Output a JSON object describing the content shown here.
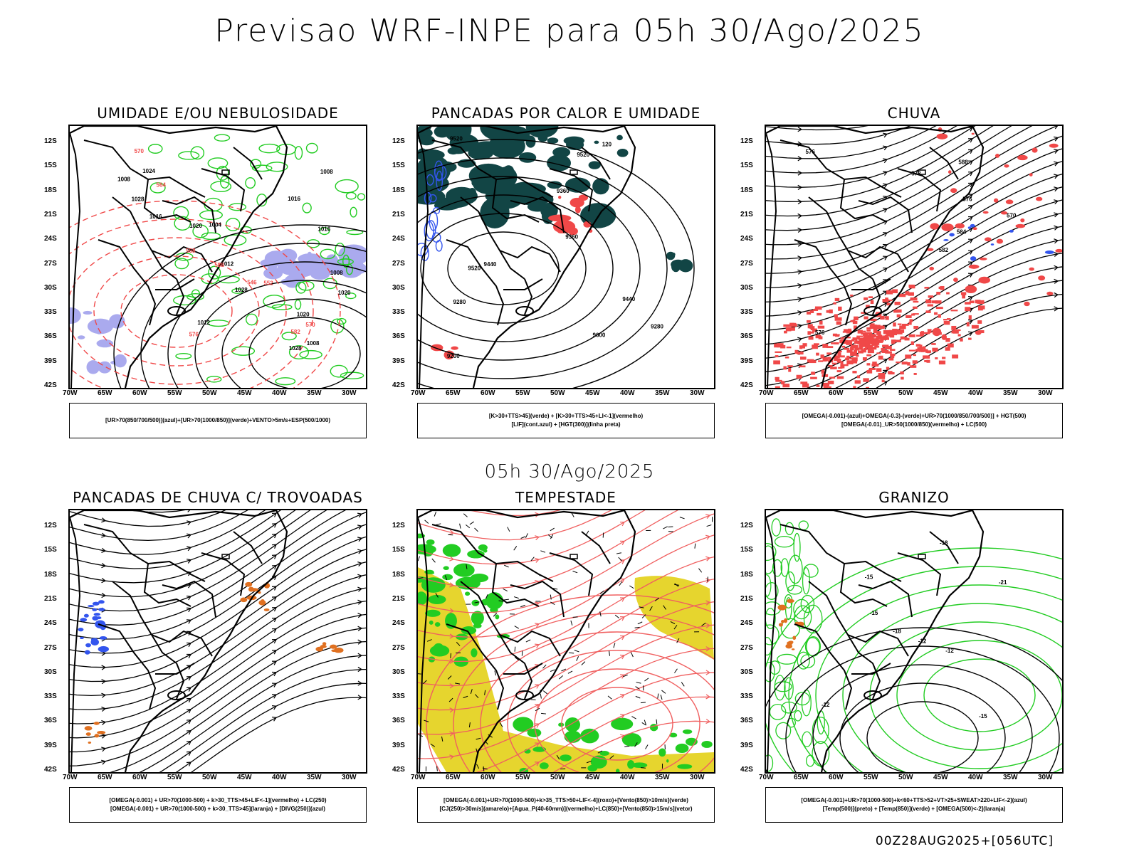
{
  "header": {
    "title": "Previsao WRF-INPE  para 05h 30/Ago/2025",
    "subtitle": "05h 30/Ago/2025",
    "footer": "00Z28AUG2025+[056UTC]"
  },
  "axes": {
    "lat_labels": [
      "12S",
      "15S",
      "18S",
      "21S",
      "24S",
      "27S",
      "30S",
      "33S",
      "36S",
      "39S",
      "42S"
    ],
    "lon_labels": [
      "70W",
      "65W",
      "60W",
      "55W",
      "50W",
      "45W",
      "40W",
      "35W",
      "30W"
    ]
  },
  "panels": [
    {
      "title": "UMIDADE E/OU NEBULOSIDADE",
      "legend": [
        "[UR>70(850/700/500)](azul)+[UR>70(1000/850)](verde)+VENTO>5m/s+ESP(500/1000)"
      ],
      "contour_labels": [
        "1008",
        "1008",
        "1008",
        "1012",
        "1016",
        "1016",
        "1020",
        "1020",
        "1024",
        "1028",
        "1028",
        "1004",
        "1008",
        "1012",
        "1016",
        "1020",
        "1028",
        "576",
        "570",
        "564",
        "558",
        "552",
        "546",
        "582",
        "588",
        "570"
      ]
    },
    {
      "title": "PANCADAS POR CALOR E UMIDADE",
      "legend": [
        "[K>30+TTS>45](verde) + [K>30+TTS>45+LI<-1](vermelho)",
        "[LIF](cont.azul) + [HGT(300)](linha preta)"
      ],
      "contour_labels": [
        "9600",
        "9520",
        "9520",
        "9520",
        "9440",
        "9440",
        "9360",
        "9360",
        "9280",
        "9200",
        "9280",
        "120"
      ]
    },
    {
      "title": "CHUVA",
      "legend": [
        "[OMEGA(-0.001)-(azul)+OMEGA(-0.3)-(verde)+UR>70(1000/850/700/500)] + HGT(500)",
        "[OMEGA(-0.01)_UR>50(1000/850)(vermelho) + LC(500)"
      ],
      "contour_labels": [
        "588",
        "582",
        "576",
        "576",
        "576",
        "573",
        "570",
        "584"
      ]
    },
    {
      "title": "PANCADAS DE CHUVA C/ TROVOADAS",
      "legend": [
        "[OMEGA(-0.001) + UR>70(1000-500) + k>30_TTS>45+LIF<-1](vermelho) + LC(250)",
        "[OMEGA(-0.001) + UR>70(1000-500) + k>30_TTS>45](laranja) + [DIVG(250)](azul)"
      ],
      "contour_labels": []
    },
    {
      "title": "TEMPESTADE",
      "legend": [
        "[OMEGA(-0.001)+UR>70(1000-500)+k>35_TTS>50+LIF<-4](roxo)+[Vento(850)>10m/s](verde)",
        "[CJ(250)>30m/s](amarelo)+[Agua_P(40-60mm)](vermelho)+LC(850)+[Vento(850)>15m/s](vetor)"
      ],
      "contour_labels": []
    },
    {
      "title": "GRANIZO",
      "legend": [
        "[OMEGA(-0.001)+UR>70(1000-500)+k<60+TTS>52+VT>25+SWEAT>220+LIF<-2](azul)",
        "[Temp(500)](preto) + [Temp(850)](verde) + [OMEGA(500)<-2](laranja)"
      ],
      "contour_labels": [
        "-12",
        "-12",
        "-15",
        "-18",
        "-15",
        "-15",
        "-12",
        "-21",
        "-18"
      ]
    }
  ],
  "colors": {
    "red": "#f04848",
    "green": "#22cc22",
    "blue": "#3355ee",
    "darkteal": "#124545",
    "lavender": "#aaaaee",
    "yellow": "#e6d52e",
    "orange": "#e07020",
    "light_red_line": "#f06060"
  }
}
